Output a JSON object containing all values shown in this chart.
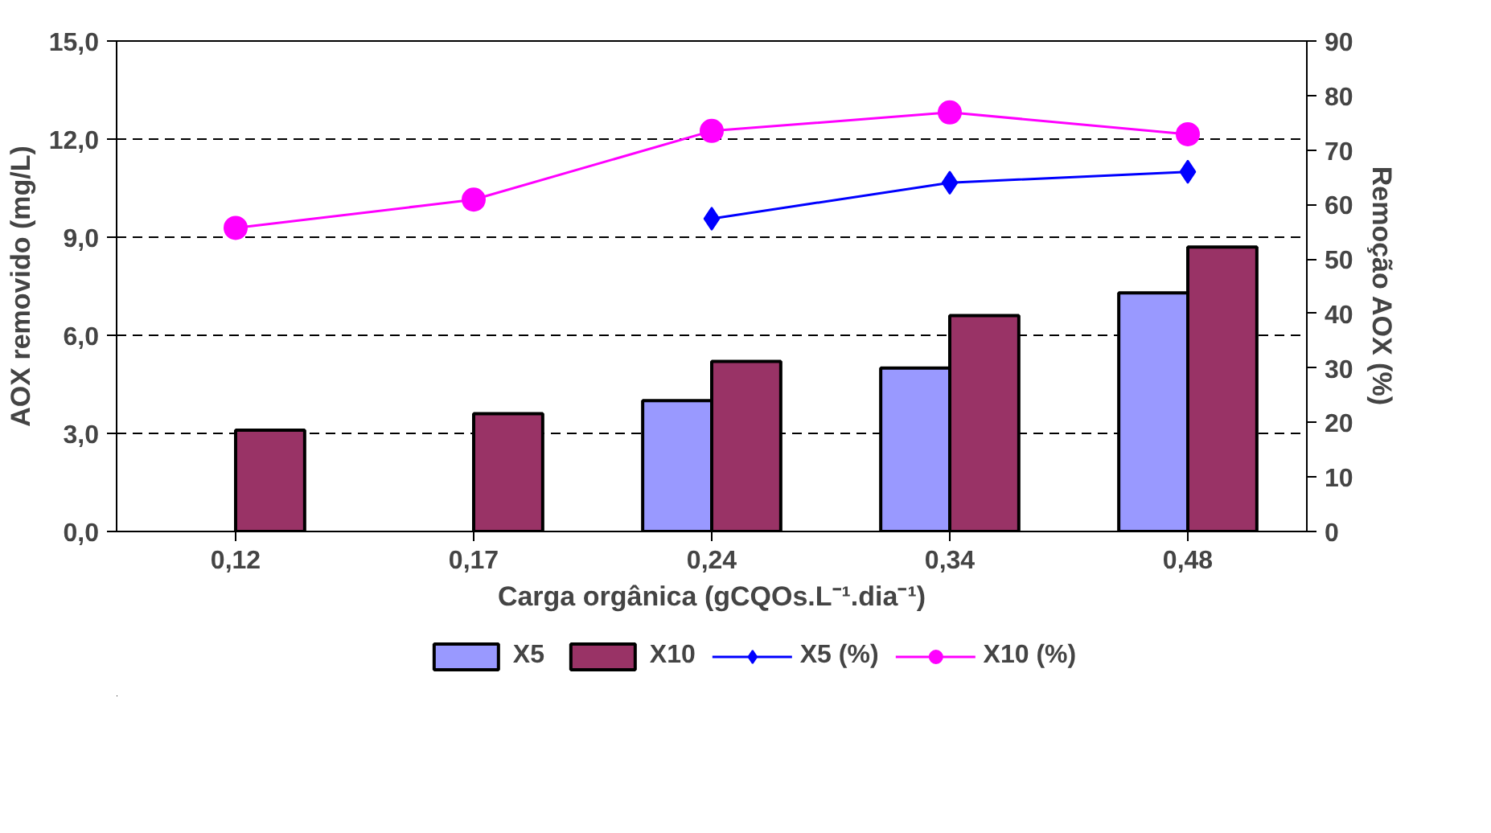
{
  "chart_data": {
    "type": "bar",
    "categories": [
      "0,12",
      "0,17",
      "0,24",
      "0,34",
      "0,48"
    ],
    "xlabel": "Carga orgânica (gCQOs.L⁻¹.dia⁻¹)",
    "ylabel": "AOX removido (mg/L)",
    "y2label": "Remoção AOX (%)",
    "ylim": [
      0,
      15
    ],
    "yticks": [
      {
        "value": 0,
        "label": "0,0"
      },
      {
        "value": 3,
        "label": "3,0"
      },
      {
        "value": 6,
        "label": "6,0"
      },
      {
        "value": 9,
        "label": "9,0"
      },
      {
        "value": 12,
        "label": "12,0"
      },
      {
        "value": 15,
        "label": "15,0"
      }
    ],
    "y2lim": [
      0,
      90
    ],
    "y2ticks": [
      0,
      10,
      20,
      30,
      40,
      50,
      60,
      70,
      80,
      90
    ],
    "grid": "y",
    "legend": "bottom",
    "series": [
      {
        "name": "X5",
        "color": "#9999ff",
        "values": [
          null,
          null,
          4.0,
          5.0,
          7.3
        ]
      },
      {
        "name": "X10",
        "color": "#993366",
        "values": [
          3.1,
          3.6,
          5.2,
          6.6,
          8.7
        ]
      },
      {
        "name": "X5 (%)",
        "type": "line",
        "axis": "y2",
        "marker": "diamond",
        "color": "#0000ff",
        "values": [
          null,
          null,
          57.4,
          64.0,
          66.0
        ]
      },
      {
        "name": "X10 (%)",
        "type": "line",
        "axis": "y2",
        "marker": "circle",
        "color": "#ff00ff",
        "values": [
          55.7,
          60.9,
          73.5,
          76.9,
          72.9
        ]
      }
    ]
  }
}
